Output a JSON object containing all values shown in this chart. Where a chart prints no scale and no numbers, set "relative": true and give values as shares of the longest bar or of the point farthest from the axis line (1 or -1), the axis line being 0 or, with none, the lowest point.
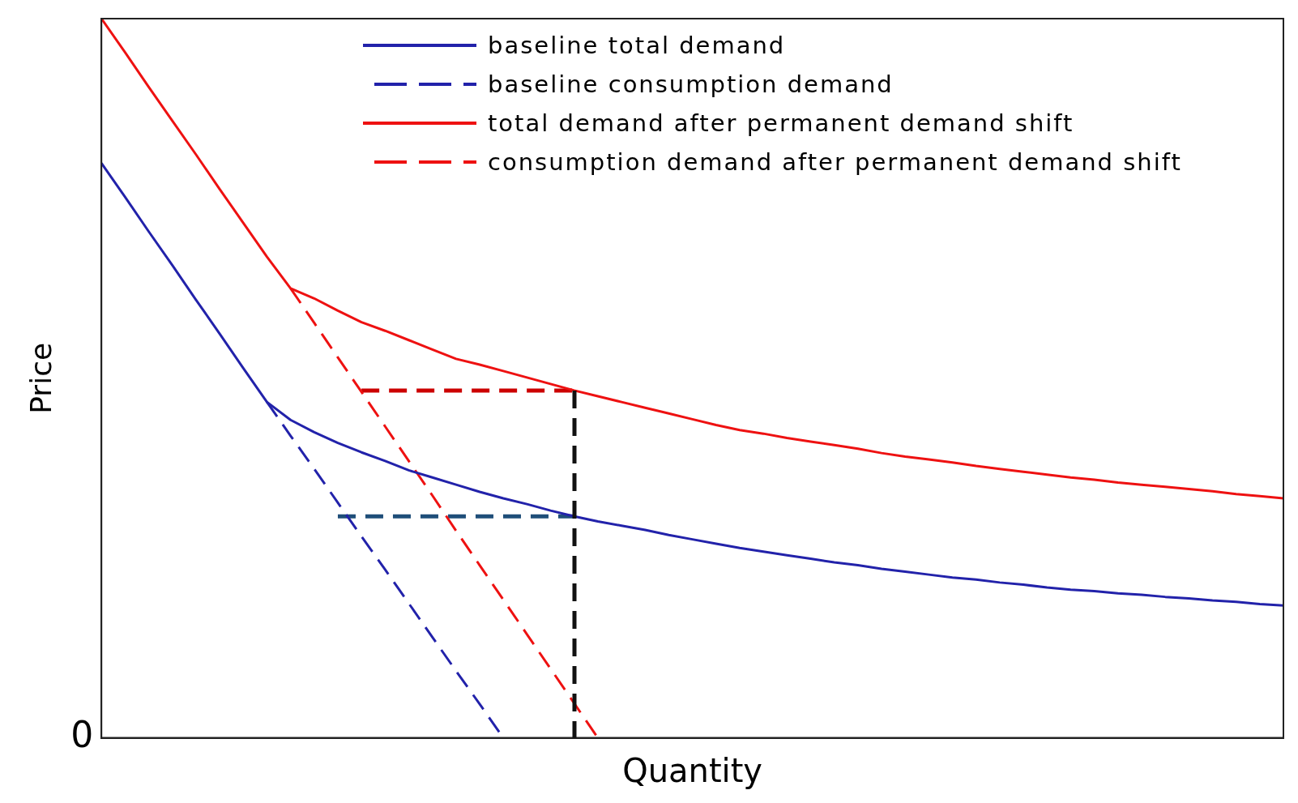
{
  "chart_data": {
    "type": "line",
    "relative": true,
    "xlabel": "Quantity",
    "ylabel": "Price",
    "grid": false,
    "legend": "top",
    "marker": "none",
    "annotations": [
      "0"
    ],
    "categories": [
      null,
      null,
      null,
      null,
      null,
      null,
      null,
      null,
      null,
      null,
      null,
      null,
      null,
      null,
      null,
      null,
      null,
      null,
      null,
      null,
      null,
      null,
      null,
      null,
      null,
      null,
      null,
      null,
      null,
      null,
      null,
      null,
      null,
      null,
      null,
      null,
      null,
      null,
      null,
      null,
      null,
      null,
      null,
      null,
      null,
      null,
      null,
      null,
      null,
      null,
      null
    ],
    "series": [
      {
        "name": "baseline total demand",
        "color": "#2222aa",
        "line_style": "solid",
        "values": [
          0.799,
          0.752,
          0.704,
          0.657,
          0.609,
          0.562,
          0.514,
          0.467,
          0.442,
          0.425,
          0.41,
          0.397,
          0.385,
          0.372,
          0.362,
          0.352,
          0.342,
          0.333,
          0.325,
          0.316,
          0.308,
          0.301,
          0.295,
          0.289,
          0.282,
          0.276,
          0.27,
          0.264,
          0.259,
          0.254,
          0.249,
          0.244,
          0.24,
          0.235,
          0.231,
          0.227,
          0.223,
          0.22,
          0.216,
          0.213,
          0.209,
          0.206,
          0.204,
          0.201,
          0.199,
          0.196,
          0.194,
          0.191,
          0.189,
          0.186,
          0.184
        ]
      },
      {
        "name": "baseline consumption demand",
        "color": "#2222aa",
        "line_style": "dashed",
        "values": [
          null,
          null,
          null,
          null,
          null,
          null,
          null,
          0.467,
          0.42,
          0.374,
          0.327,
          0.28,
          0.234,
          0.187,
          0.14,
          0.093,
          0.047,
          0,
          null,
          null,
          null,
          null,
          null,
          null,
          null,
          null,
          null,
          null,
          null,
          null,
          null,
          null,
          null,
          null,
          null,
          null,
          null,
          null,
          null,
          null,
          null,
          null,
          null,
          null,
          null,
          null,
          null,
          null,
          null,
          null,
          null
        ]
      },
      {
        "name": "total demand after permanent demand shift",
        "color": "#ee1111",
        "line_style": "solid",
        "values": [
          1,
          0.953,
          0.905,
          0.858,
          0.811,
          0.763,
          0.716,
          0.669,
          0.625,
          0.611,
          0.594,
          0.578,
          0.566,
          0.553,
          0.54,
          0.527,
          0.519,
          0.51,
          0.501,
          0.492,
          0.483,
          0.475,
          0.467,
          0.459,
          0.451,
          0.443,
          0.435,
          0.428,
          0.423,
          0.417,
          0.412,
          0.407,
          0.402,
          0.396,
          0.391,
          0.387,
          0.383,
          0.378,
          0.374,
          0.37,
          0.366,
          0.362,
          0.359,
          0.355,
          0.352,
          0.349,
          0.346,
          0.343,
          0.339,
          0.336,
          0.333
        ]
      },
      {
        "name": "consumption demand after permanent demand shift",
        "color": "#ee1111",
        "line_style": "dashed",
        "values": [
          null,
          null,
          null,
          null,
          null,
          null,
          null,
          null,
          0.625,
          0.577,
          0.529,
          0.481,
          0.433,
          0.385,
          0.337,
          0.288,
          0.24,
          0.192,
          0.144,
          0.096,
          0.048,
          0,
          null,
          null,
          null,
          null,
          null,
          null,
          null,
          null,
          null,
          null,
          null,
          null,
          null,
          null,
          null,
          null,
          null,
          null,
          null,
          null,
          null,
          null,
          null,
          null,
          null,
          null,
          null,
          null,
          null
        ]
      },
      {
        "color": "#cc0000",
        "line_style": "dashed",
        "values": [
          null,
          null,
          null,
          null,
          null,
          null,
          null,
          null,
          null,
          null,
          null,
          0.483,
          0.483,
          0.483,
          0.483,
          0.483,
          0.483,
          0.483,
          0.483,
          0.483,
          0.483,
          null,
          null,
          null,
          null,
          null,
          null,
          null,
          null,
          null,
          null,
          null,
          null,
          null,
          null,
          null,
          null,
          null,
          null,
          null,
          null,
          null,
          null,
          null,
          null,
          null,
          null,
          null,
          null,
          null,
          null
        ]
      },
      {
        "color": "#1f4e79",
        "line_style": "dashed",
        "values": [
          null,
          null,
          null,
          null,
          null,
          null,
          null,
          null,
          null,
          null,
          0.308,
          0.308,
          0.308,
          0.308,
          0.308,
          0.308,
          0.308,
          0.308,
          0.308,
          0.308,
          0.308,
          null,
          null,
          null,
          null,
          null,
          null,
          null,
          null,
          null,
          null,
          null,
          null,
          null,
          null,
          null,
          null,
          null,
          null,
          null,
          null,
          null,
          null,
          null,
          null,
          null,
          null,
          null,
          null,
          null,
          null
        ]
      }
    ]
  }
}
